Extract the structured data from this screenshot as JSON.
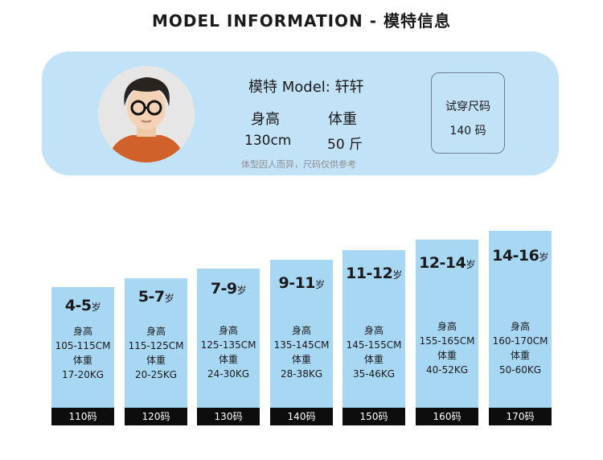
{
  "title": "MODEL INFORMATION - 模特信息",
  "model": {
    "name": "模特 Model: 轩轩",
    "height_label": "身高",
    "height_value": "130cm",
    "weight_label": "体重",
    "weight_value": "50 斤",
    "note": "体型因人而异，尺码仅供参考",
    "trial_size_label": "试穿尺码",
    "trial_size_value": "140 码"
  },
  "sizes": [
    {
      "age": "4-5",
      "age_unit": "岁",
      "h_label": "身高",
      "height": "105-115CM",
      "w_label": "体重",
      "weight": "17-20KG",
      "size": "110码"
    },
    {
      "age": "5-7",
      "age_unit": "岁",
      "h_label": "身高",
      "height": "115-125CM",
      "w_label": "体重",
      "weight": "20-25KG",
      "size": "120码"
    },
    {
      "age": "7-9",
      "age_unit": "岁",
      "h_label": "身高",
      "height": "125-135CM",
      "w_label": "体重",
      "weight": "24-30KG",
      "size": "130码"
    },
    {
      "age": "9-11",
      "age_unit": "岁",
      "h_label": "身高",
      "height": "135-145CM",
      "w_label": "体重",
      "weight": "28-38KG",
      "size": "140码"
    },
    {
      "age": "11-12",
      "age_unit": "岁",
      "h_label": "身高",
      "height": "145-155CM",
      "w_label": "体重",
      "weight": "35-46KG",
      "size": "150码"
    },
    {
      "age": "12-14",
      "age_unit": "岁",
      "h_label": "身高",
      "height": "155-165CM",
      "w_label": "体重",
      "weight": "40-52KG",
      "size": "160码"
    },
    {
      "age": "14-16",
      "age_unit": "岁",
      "h_label": "身高",
      "height": "160-170CM",
      "w_label": "体重",
      "weight": "50-60KG",
      "size": "170码"
    }
  ],
  "colors": {
    "card_bg": "#c2e2f7",
    "column_bg": "#a8d7f4",
    "size_bar": "#0d0d0d"
  }
}
